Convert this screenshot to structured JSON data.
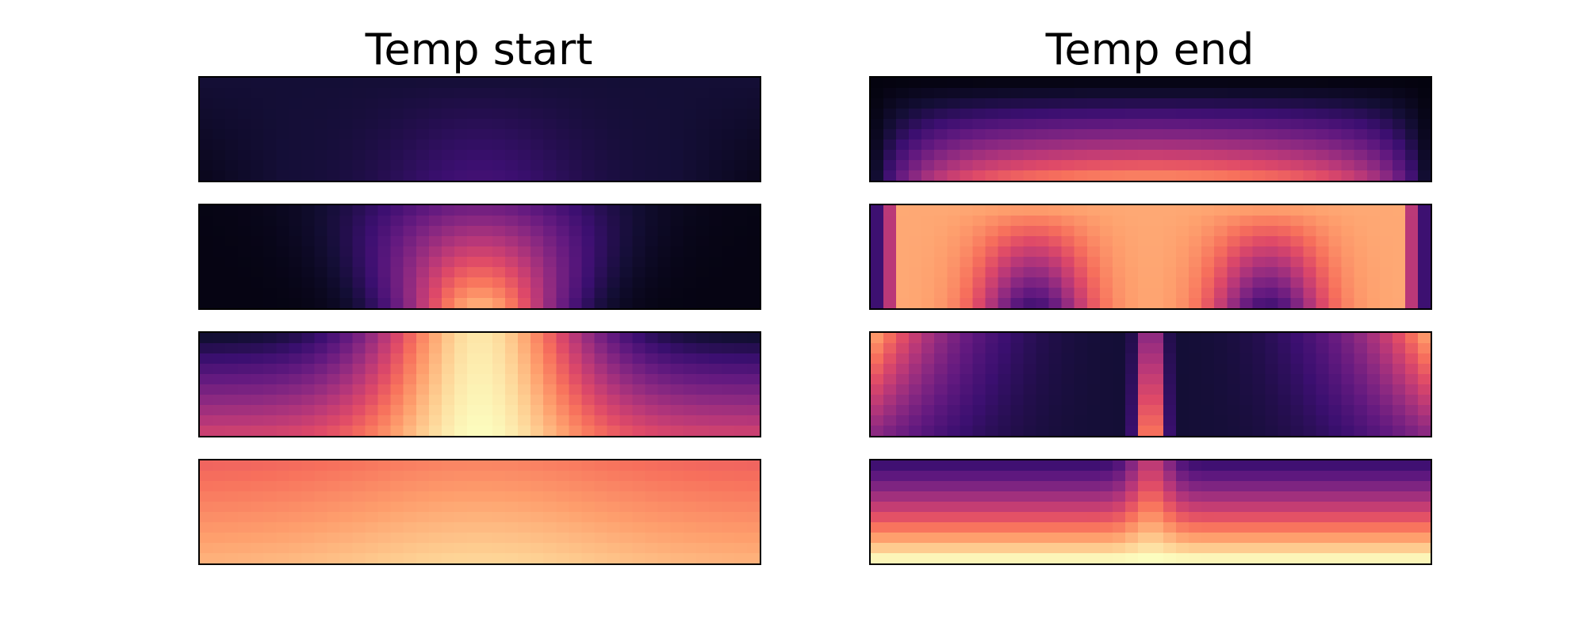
{
  "figure": {
    "titles": [
      "Temp start",
      "Temp end"
    ]
  },
  "chart_data": [
    {
      "type": "heatmap",
      "title": "Temp start",
      "panel": 1,
      "colormap": "magma",
      "grid": false
    },
    {
      "type": "heatmap",
      "panel": 2,
      "colormap": "magma",
      "grid": false
    },
    {
      "type": "heatmap",
      "panel": 3,
      "colormap": "magma",
      "grid": false
    },
    {
      "type": "heatmap",
      "panel": 4,
      "colormap": "magma",
      "grid": false
    },
    {
      "type": "heatmap",
      "title": "Temp end",
      "panel": 1,
      "colormap": "magma",
      "grid": false
    },
    {
      "type": "heatmap",
      "panel": 2,
      "colormap": "magma",
      "grid": false
    },
    {
      "type": "heatmap",
      "panel": 3,
      "colormap": "magma",
      "grid": false
    },
    {
      "type": "heatmap",
      "panel": 4,
      "colormap": "magma",
      "grid": false
    }
  ]
}
